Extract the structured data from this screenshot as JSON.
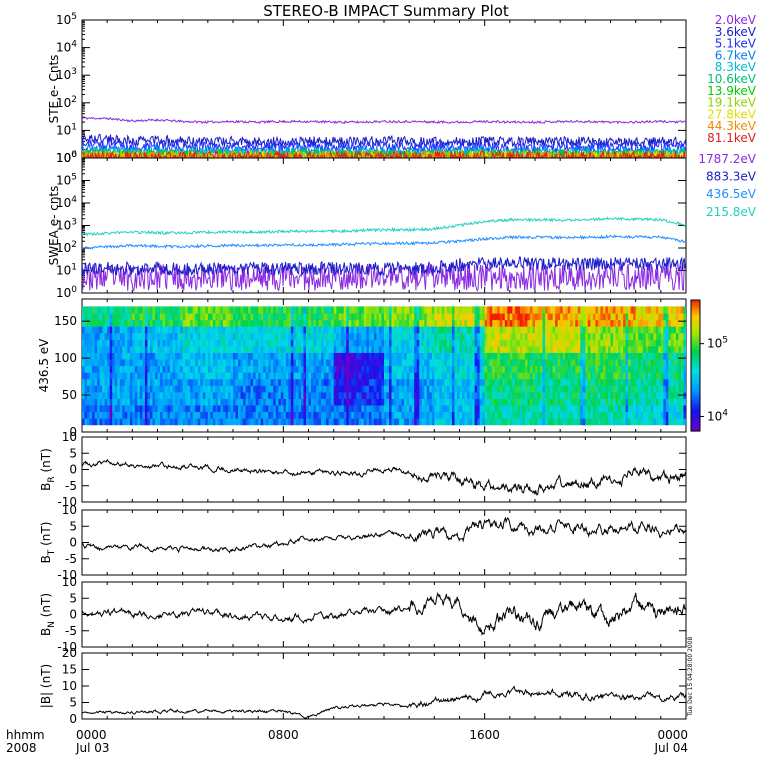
{
  "title": "STEREO-B IMPACT Summary Plot",
  "footer": {
    "left_top": "hhmm",
    "left_bottom": "2008",
    "ticks": [
      {
        "t": 0,
        "label": "0000",
        "sub": "Jul 03"
      },
      {
        "t": 8,
        "label": "0800",
        "sub": ""
      },
      {
        "t": 16,
        "label": "1600",
        "sub": ""
      },
      {
        "t": 24,
        "label": "0000",
        "sub": "Jul 04"
      }
    ]
  },
  "side_stamp": "Tue Dec 15 04:28:00 2008",
  "colorbar": {
    "ticks": [
      "10^5",
      "10^4"
    ]
  },
  "chart_data": [
    {
      "type": "line",
      "panel": "ste",
      "ylabel": "STE e- Cnts",
      "yscale": "log",
      "ylim": [
        1,
        100000
      ],
      "ytick_exponents": [
        0,
        1,
        2,
        3,
        4,
        5
      ],
      "xlim": [
        0,
        24
      ],
      "series": [
        {
          "name": "2.0keV",
          "color": "#8a2be2",
          "values": [
            28,
            27,
            22,
            24,
            21,
            20,
            21,
            20,
            21,
            21,
            20,
            20,
            21,
            21,
            20,
            20,
            21,
            20,
            20,
            21,
            21,
            20,
            20,
            21,
            20
          ]
        },
        {
          "name": "3.6keV",
          "color": "#1c1cc8",
          "values": [
            5.0,
            5.0,
            4.0,
            4.5,
            4.0,
            4.0,
            4.0,
            3.8,
            4.0,
            4.0,
            4.0,
            4.0,
            4.2,
            4.0,
            3.8,
            4.0,
            4.0,
            3.8,
            3.8,
            4.0,
            4.0,
            3.8,
            3.8,
            4.0,
            4.0
          ]
        },
        {
          "name": "5.1keV",
          "color": "#2030ff",
          "values": [
            3.0,
            3.0,
            2.5,
            2.8,
            2.5,
            2.5,
            2.5,
            2.4,
            2.5,
            2.5,
            2.5,
            2.5,
            2.6,
            2.5,
            2.4,
            2.5,
            2.5,
            2.4,
            2.4,
            2.5,
            2.5,
            2.4,
            2.4,
            2.5,
            2.5
          ]
        },
        {
          "name": "6.7keV",
          "color": "#0080ff",
          "values": [
            2.0,
            2.0,
            1.8,
            1.9,
            1.8,
            1.8,
            1.8,
            1.7,
            1.8,
            1.8,
            1.8,
            1.8,
            1.8,
            1.8,
            1.7,
            1.8,
            1.8,
            1.7,
            1.7,
            1.8,
            1.8,
            1.7,
            1.7,
            1.8,
            1.8
          ]
        },
        {
          "name": "8.3keV",
          "color": "#00bcd0",
          "values": [
            1.6,
            1.6,
            1.5,
            1.5,
            1.5,
            1.5,
            1.5,
            1.4,
            1.5,
            1.5,
            1.5,
            1.5,
            1.5,
            1.5,
            1.4,
            1.5,
            1.5,
            1.4,
            1.4,
            1.5,
            1.5,
            1.4,
            1.4,
            1.5,
            1.5
          ]
        },
        {
          "name": "10.6keV",
          "color": "#00c070",
          "values": [
            1.3,
            1.3,
            1.25,
            1.3,
            1.25,
            1.25,
            1.25,
            1.2,
            1.25,
            1.25,
            1.25,
            1.25,
            1.25,
            1.25,
            1.2,
            1.25,
            1.25,
            1.2,
            1.2,
            1.25,
            1.25,
            1.2,
            1.2,
            1.25,
            1.25
          ]
        },
        {
          "name": "13.9keV",
          "color": "#00cc00",
          "values": [
            1.15,
            1.15,
            1.12,
            1.12,
            1.1,
            1.1,
            1.1,
            1.1,
            1.1,
            1.1,
            1.1,
            1.1,
            1.1,
            1.1,
            1.1,
            1.1,
            1.1,
            1.1,
            1.1,
            1.1,
            1.1,
            1.1,
            1.1,
            1.1,
            1.1
          ]
        },
        {
          "name": "19.1keV",
          "color": "#8ed400",
          "values": [
            1.05,
            1.05,
            1.05,
            1.05,
            1.05,
            1.05,
            1.05,
            1.05,
            1.05,
            1.05,
            1.05,
            1.05,
            1.05,
            1.05,
            1.05,
            1.05,
            1.05,
            1.05,
            1.05,
            1.05,
            1.05,
            1.05,
            1.05,
            1.05,
            1.05
          ]
        },
        {
          "name": "27.8keV",
          "color": "#e0e000",
          "values": [
            1.02,
            1.02,
            1.02,
            1.02,
            1.02,
            1.02,
            1.02,
            1.02,
            1.02,
            1.02,
            1.02,
            1.02,
            1.02,
            1.02,
            1.02,
            1.02,
            1.02,
            1.02,
            1.02,
            1.02,
            1.02,
            1.02,
            1.02,
            1.02,
            1.02
          ]
        },
        {
          "name": "44.3keV",
          "color": "#f08c00",
          "values": [
            1.01,
            1.01,
            1.01,
            1.01,
            1.01,
            1.01,
            1.01,
            1.01,
            1.01,
            1.01,
            1.01,
            1.01,
            1.01,
            1.01,
            1.01,
            1.01,
            1.01,
            1.01,
            1.01,
            1.01,
            1.01,
            1.01,
            1.01,
            1.01,
            1.01
          ]
        },
        {
          "name": "81.1keV",
          "color": "#e02020",
          "values": [
            1.0,
            1.0,
            1.0,
            1.0,
            1.0,
            1.0,
            1.0,
            1.0,
            1.0,
            1.0,
            1.0,
            1.0,
            1.0,
            1.0,
            1.0,
            1.0,
            1.0,
            1.0,
            1.0,
            1.0,
            1.0,
            1.0,
            1.0,
            1.0,
            1.0
          ]
        }
      ]
    },
    {
      "type": "line",
      "panel": "swea",
      "ylabel": "SWEA e- cnts",
      "yscale": "log",
      "ylim": [
        1,
        1000000
      ],
      "ytick_exponents": [
        0,
        1,
        2,
        3,
        4,
        5,
        6
      ],
      "xlim": [
        0,
        24
      ],
      "series": [
        {
          "name": "1787.2eV",
          "color": "#8a2be2",
          "values": [
            5,
            5,
            5,
            5,
            5,
            5,
            5,
            5,
            5,
            5,
            5,
            5,
            5,
            5,
            5,
            5,
            5,
            5,
            5,
            5,
            5,
            5,
            5,
            5,
            5
          ]
        },
        {
          "name": "883.3eV",
          "color": "#1c1cc8",
          "values": [
            12,
            12,
            12,
            12,
            12,
            12,
            12,
            12,
            12,
            12,
            12,
            12,
            12,
            12,
            12,
            18,
            20,
            20,
            20,
            20,
            20,
            20,
            20,
            20,
            20
          ]
        },
        {
          "name": "436.5eV",
          "color": "#1e90ff",
          "values": [
            100,
            110,
            130,
            120,
            115,
            125,
            130,
            130,
            140,
            135,
            140,
            150,
            160,
            160,
            170,
            200,
            250,
            300,
            300,
            290,
            300,
            320,
            310,
            300,
            180
          ]
        },
        {
          "name": "215.8eV",
          "color": "#20d0c0",
          "values": [
            400,
            450,
            500,
            480,
            460,
            500,
            520,
            510,
            550,
            540,
            560,
            600,
            650,
            650,
            700,
            1000,
            1500,
            1800,
            1800,
            1700,
            1800,
            2000,
            1900,
            1800,
            1000
          ]
        }
      ]
    },
    {
      "type": "heatmap",
      "panel": "pad",
      "ylabel": "436.5 eV",
      "ylim": [
        0,
        180
      ],
      "yticks": [
        0,
        50,
        100,
        150
      ],
      "xlim": [
        0,
        24
      ],
      "y_bins": [
        0,
        36,
        72,
        108,
        144,
        180
      ],
      "x_hours": [
        0,
        2,
        4,
        6,
        8,
        10,
        12,
        14,
        16,
        18,
        20,
        22
      ],
      "log_values": [
        [
          4.3,
          4.3,
          4.3,
          4.3,
          4.3,
          4.3,
          4.4,
          4.5,
          4.7,
          4.7,
          4.7,
          4.6
        ],
        [
          4.4,
          4.4,
          4.4,
          4.3,
          4.3,
          4.1,
          4.4,
          4.5,
          4.8,
          4.8,
          4.8,
          4.7
        ],
        [
          4.4,
          4.4,
          4.5,
          4.4,
          4.4,
          4.0,
          4.5,
          4.6,
          4.9,
          4.9,
          4.9,
          4.8
        ],
        [
          4.4,
          4.5,
          4.6,
          4.6,
          4.6,
          4.4,
          4.6,
          4.7,
          5.2,
          5.2,
          5.1,
          5.0
        ],
        [
          4.8,
          4.9,
          5.0,
          4.9,
          4.9,
          5.0,
          5.1,
          5.2,
          5.5,
          5.4,
          5.4,
          5.3
        ]
      ],
      "colorbar_range": [
        3.8,
        5.6
      ]
    },
    {
      "type": "line",
      "panel": "br",
      "ylabel": "B_R (nT)",
      "ylim": [
        -10,
        10
      ],
      "yticks": [
        -10,
        -5,
        0,
        5,
        10
      ],
      "xlim": [
        0,
        24
      ],
      "values": [
        1.5,
        2.5,
        1.5,
        1.0,
        1.0,
        0.5,
        0.0,
        -0.5,
        -1.0,
        -1.5,
        -1.0,
        -1.5,
        0.5,
        -1.5,
        -2.5,
        -3.0,
        -5.5,
        -5.0,
        -6.0,
        -5.0,
        -4.0,
        -3.5,
        -1.0,
        -3.0,
        -2.0
      ]
    },
    {
      "type": "line",
      "panel": "bt",
      "ylabel": "B_T (nT)",
      "ylim": [
        -10,
        10
      ],
      "yticks": [
        -10,
        -5,
        0,
        5,
        10
      ],
      "xlim": [
        0,
        24
      ],
      "values": [
        -1.0,
        -2.0,
        -1.5,
        -1.5,
        -2.0,
        -2.0,
        -2.0,
        -1.5,
        0.0,
        1.5,
        2.0,
        1.5,
        2.5,
        2.0,
        3.0,
        2.5,
        5.5,
        5.5,
        4.0,
        5.5,
        4.5,
        4.0,
        5.0,
        4.0,
        3.5
      ]
    },
    {
      "type": "line",
      "panel": "bn",
      "ylabel": "B_N (nT)",
      "ylim": [
        -10,
        10
      ],
      "yticks": [
        -10,
        -5,
        0,
        5,
        10
      ],
      "xlim": [
        0,
        24
      ],
      "values": [
        0.0,
        0.5,
        0.0,
        -0.5,
        0.0,
        0.5,
        -0.5,
        -0.5,
        -1.0,
        -0.5,
        -1.0,
        1.0,
        0.5,
        2.0,
        4.0,
        3.0,
        -5.0,
        1.0,
        -3.0,
        2.0,
        3.0,
        -2.0,
        4.0,
        0.0,
        1.0
      ]
    },
    {
      "type": "line",
      "panel": "bmag",
      "ylabel": "|B| (nT)",
      "ylim": [
        0,
        20
      ],
      "yticks": [
        0,
        5,
        10,
        15,
        20
      ],
      "xlim": [
        0,
        24
      ],
      "values": [
        2.0,
        2.0,
        2.0,
        2.5,
        2.5,
        2.5,
        2.0,
        2.5,
        2.5,
        0.5,
        3.0,
        4.0,
        4.5,
        4.0,
        5.0,
        6.0,
        7.5,
        8.0,
        8.0,
        7.5,
        7.0,
        6.5,
        6.5,
        6.0,
        6.5
      ]
    }
  ]
}
